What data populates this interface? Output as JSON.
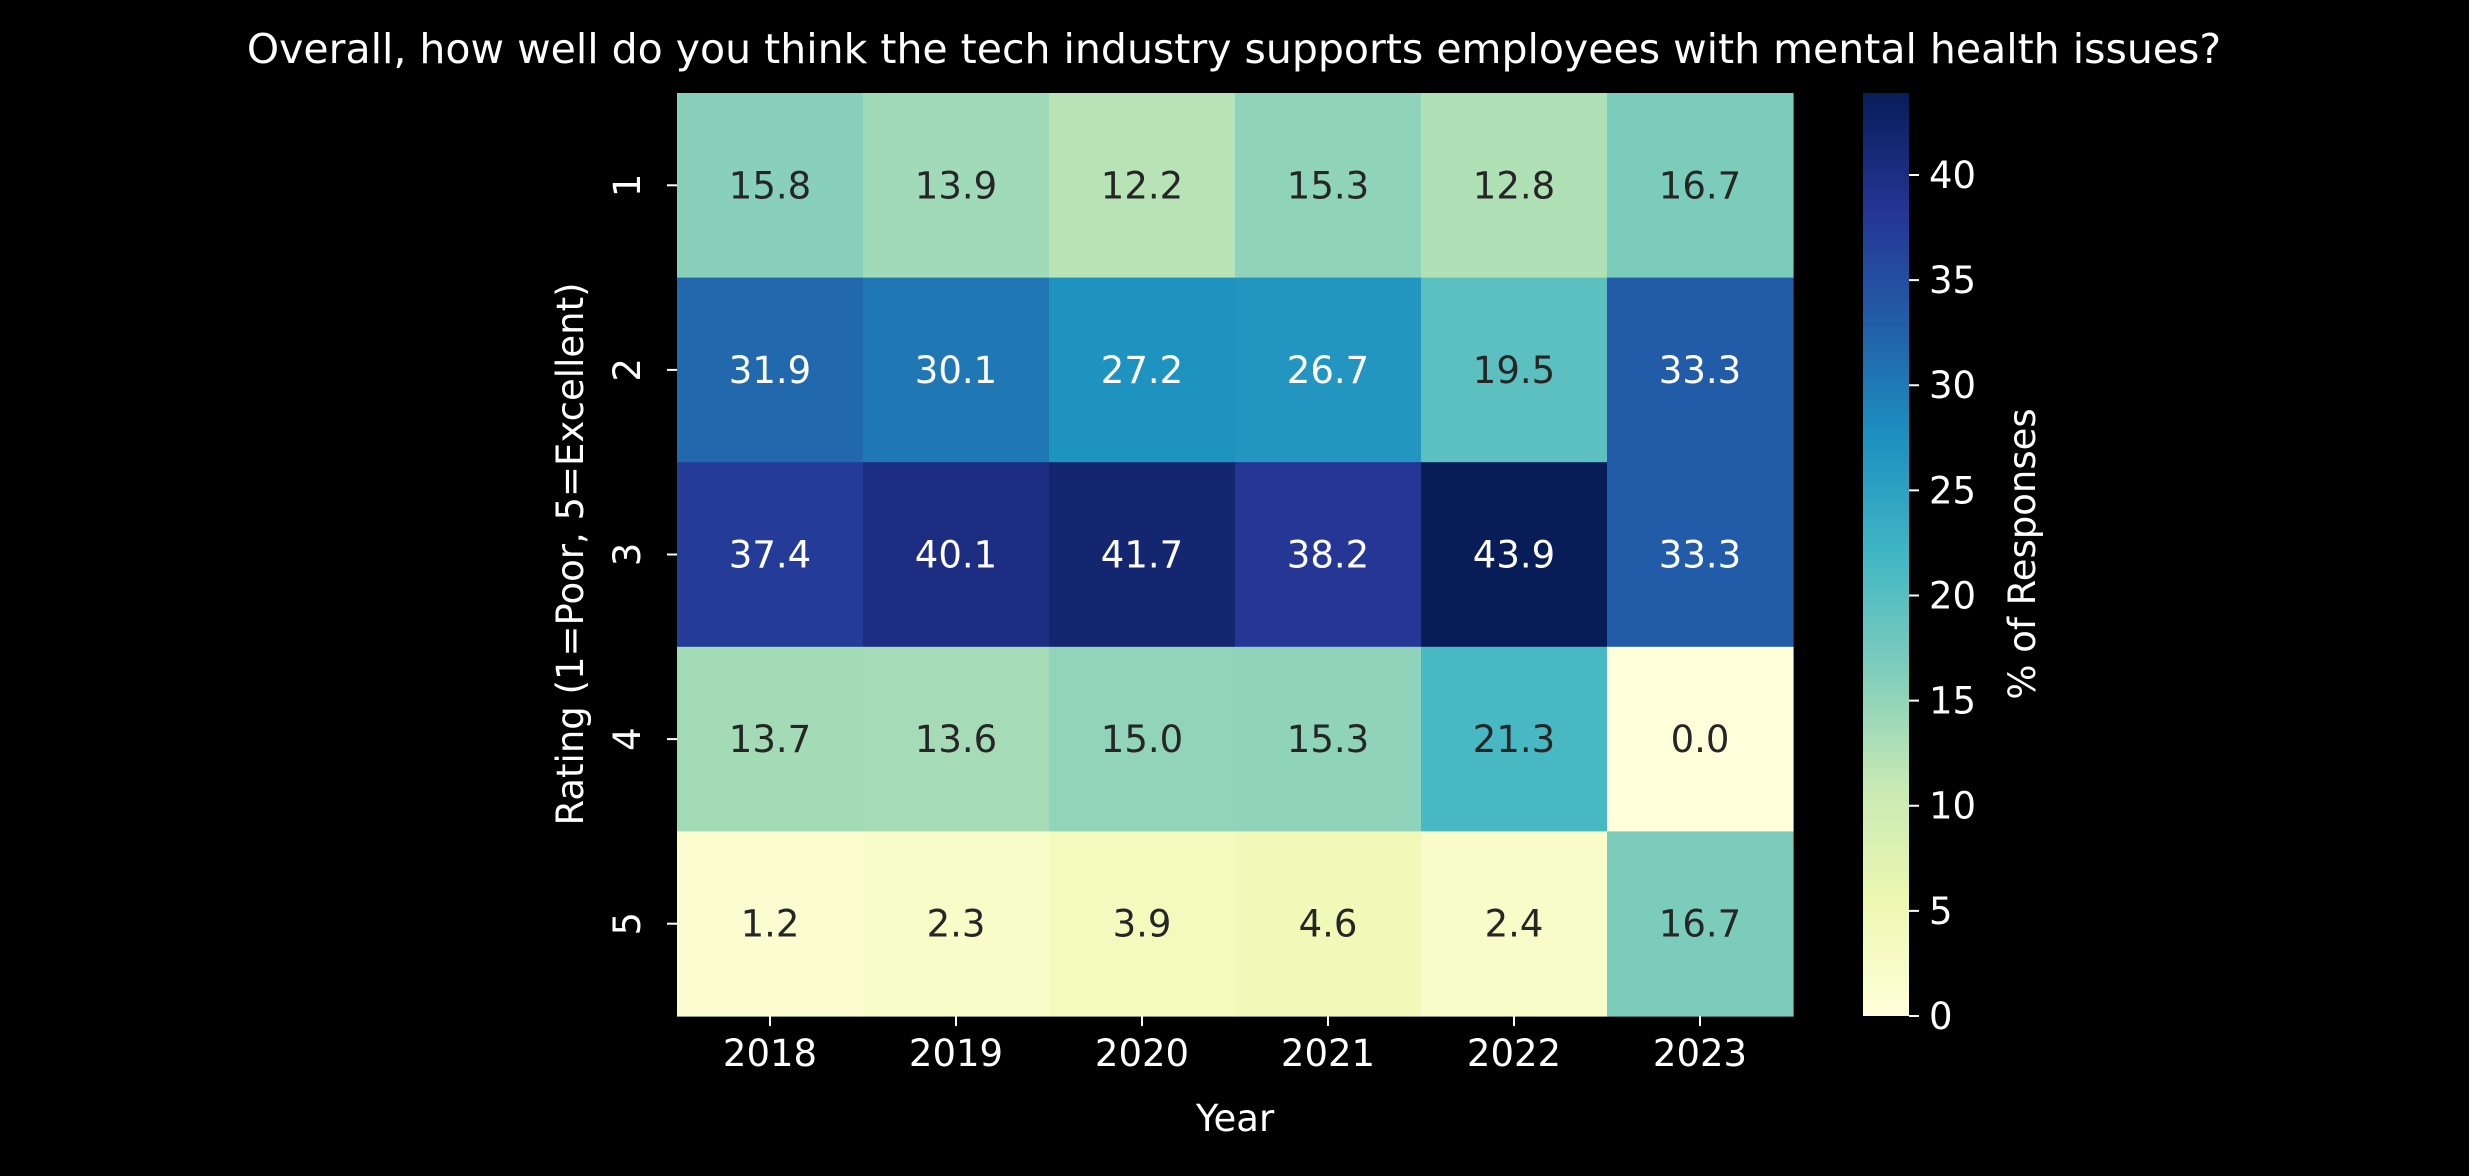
{
  "chart_data": {
    "type": "heatmap",
    "title": "Overall, how well do you think the tech industry supports employees with mental health issues?",
    "xlabel": "Year",
    "ylabel": "Rating (1=Poor, 5=Excellent)",
    "x_categories": [
      "2018",
      "2019",
      "2020",
      "2021",
      "2022",
      "2023"
    ],
    "y_categories": [
      "1",
      "2",
      "3",
      "4",
      "5"
    ],
    "values": [
      [
        15.8,
        13.9,
        12.2,
        15.3,
        12.8,
        16.7
      ],
      [
        31.9,
        30.1,
        27.2,
        26.7,
        19.5,
        33.3
      ],
      [
        37.4,
        40.1,
        41.7,
        38.2,
        43.9,
        33.3
      ],
      [
        13.7,
        13.6,
        15.0,
        15.3,
        21.3,
        0.0
      ],
      [
        1.2,
        2.3,
        3.9,
        4.6,
        2.4,
        16.7
      ]
    ],
    "value_format": "0.1f",
    "colormap": "YlGnBu",
    "colorbar": {
      "label": "% of Responses",
      "range": [
        0,
        43.9
      ],
      "ticks": [
        "0",
        "5",
        "10",
        "15",
        "20",
        "25",
        "30",
        "35",
        "40"
      ]
    },
    "grid": false,
    "colors": {
      "background": "#000000",
      "text": "#ffffff",
      "annotation_dark": "#262626",
      "annotation_light": "#ffffff"
    }
  }
}
